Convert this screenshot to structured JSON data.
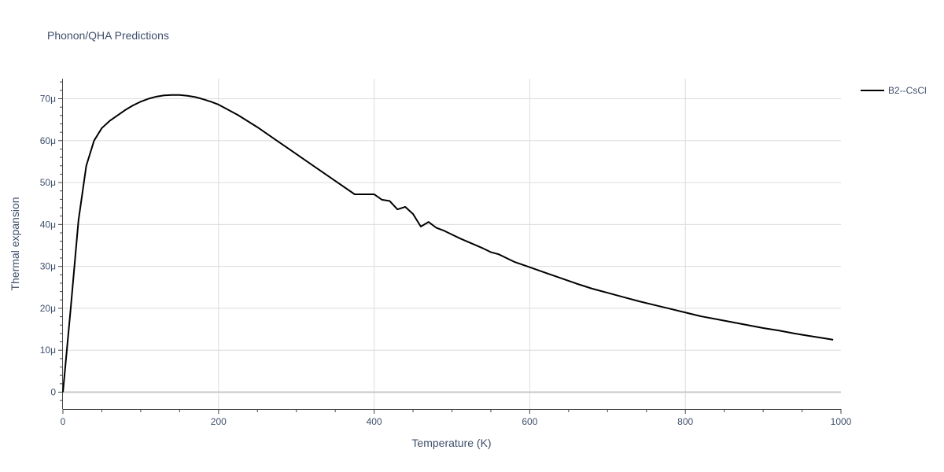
{
  "chart_data": {
    "type": "line",
    "title": "Phonon/QHA Predictions",
    "xlabel": "Temperature (K)",
    "ylabel": "Thermal expansion",
    "xlim": [
      0,
      1000
    ],
    "ylim": [
      -4e-06,
      7.5e-05
    ],
    "grid": true,
    "legend_position": "top-right",
    "x_ticks": [
      0,
      200,
      400,
      600,
      800,
      1000
    ],
    "x_tick_labels": [
      "0",
      "200",
      "400",
      "600",
      "800",
      "1000"
    ],
    "y_ticks": [
      0,
      1e-05,
      2e-05,
      3e-05,
      4e-05,
      5e-05,
      6e-05,
      7e-05
    ],
    "y_tick_labels": [
      "0",
      "10μ",
      "20μ",
      "30μ",
      "40μ",
      "50μ",
      "60μ",
      "70μ"
    ],
    "series": [
      {
        "name": "B2--CsCl",
        "color": "#000000",
        "x": [
          0,
          10,
          20,
          30,
          40,
          50,
          60,
          70,
          80,
          90,
          100,
          110,
          120,
          130,
          140,
          150,
          160,
          170,
          180,
          190,
          200,
          225,
          250,
          275,
          300,
          325,
          350,
          375,
          400,
          410,
          420,
          430,
          440,
          450,
          460,
          470,
          480,
          490,
          500,
          510,
          520,
          530,
          540,
          550,
          560,
          570,
          580,
          600,
          620,
          640,
          660,
          680,
          700,
          720,
          740,
          760,
          780,
          800,
          820,
          840,
          860,
          880,
          900,
          920,
          940,
          960,
          980,
          990
        ],
        "y": [
          0,
          2e-05,
          4.1e-05,
          5.4e-05,
          6e-05,
          6.3e-05,
          6.47e-05,
          6.6e-05,
          6.73e-05,
          6.84e-05,
          6.93e-05,
          7e-05,
          7.05e-05,
          7.08e-05,
          7.09e-05,
          7.09e-05,
          7.07e-05,
          7.04e-05,
          6.99e-05,
          6.93e-05,
          6.86e-05,
          6.61e-05,
          6.32e-05,
          6e-05,
          5.68e-05,
          5.36e-05,
          5.04e-05,
          4.72e-05,
          4.72e-05,
          4.59e-05,
          4.56e-05,
          4.36e-05,
          4.42e-05,
          4.25e-05,
          3.95e-05,
          4.06e-05,
          3.92e-05,
          3.85e-05,
          3.76e-05,
          3.67e-05,
          3.59e-05,
          3.51e-05,
          3.43e-05,
          3.34e-05,
          3.29e-05,
          3.2e-05,
          3.11e-05,
          2.98e-05,
          2.85e-05,
          2.72e-05,
          2.59e-05,
          2.47e-05,
          2.37e-05,
          2.27e-05,
          2.17e-05,
          2.08e-05,
          1.99e-05,
          1.9e-05,
          1.81e-05,
          1.74e-05,
          1.67e-05,
          1.6e-05,
          1.53e-05,
          1.47e-05,
          1.4e-05,
          1.34e-05,
          1.28e-05,
          1.25e-05
        ]
      }
    ]
  }
}
